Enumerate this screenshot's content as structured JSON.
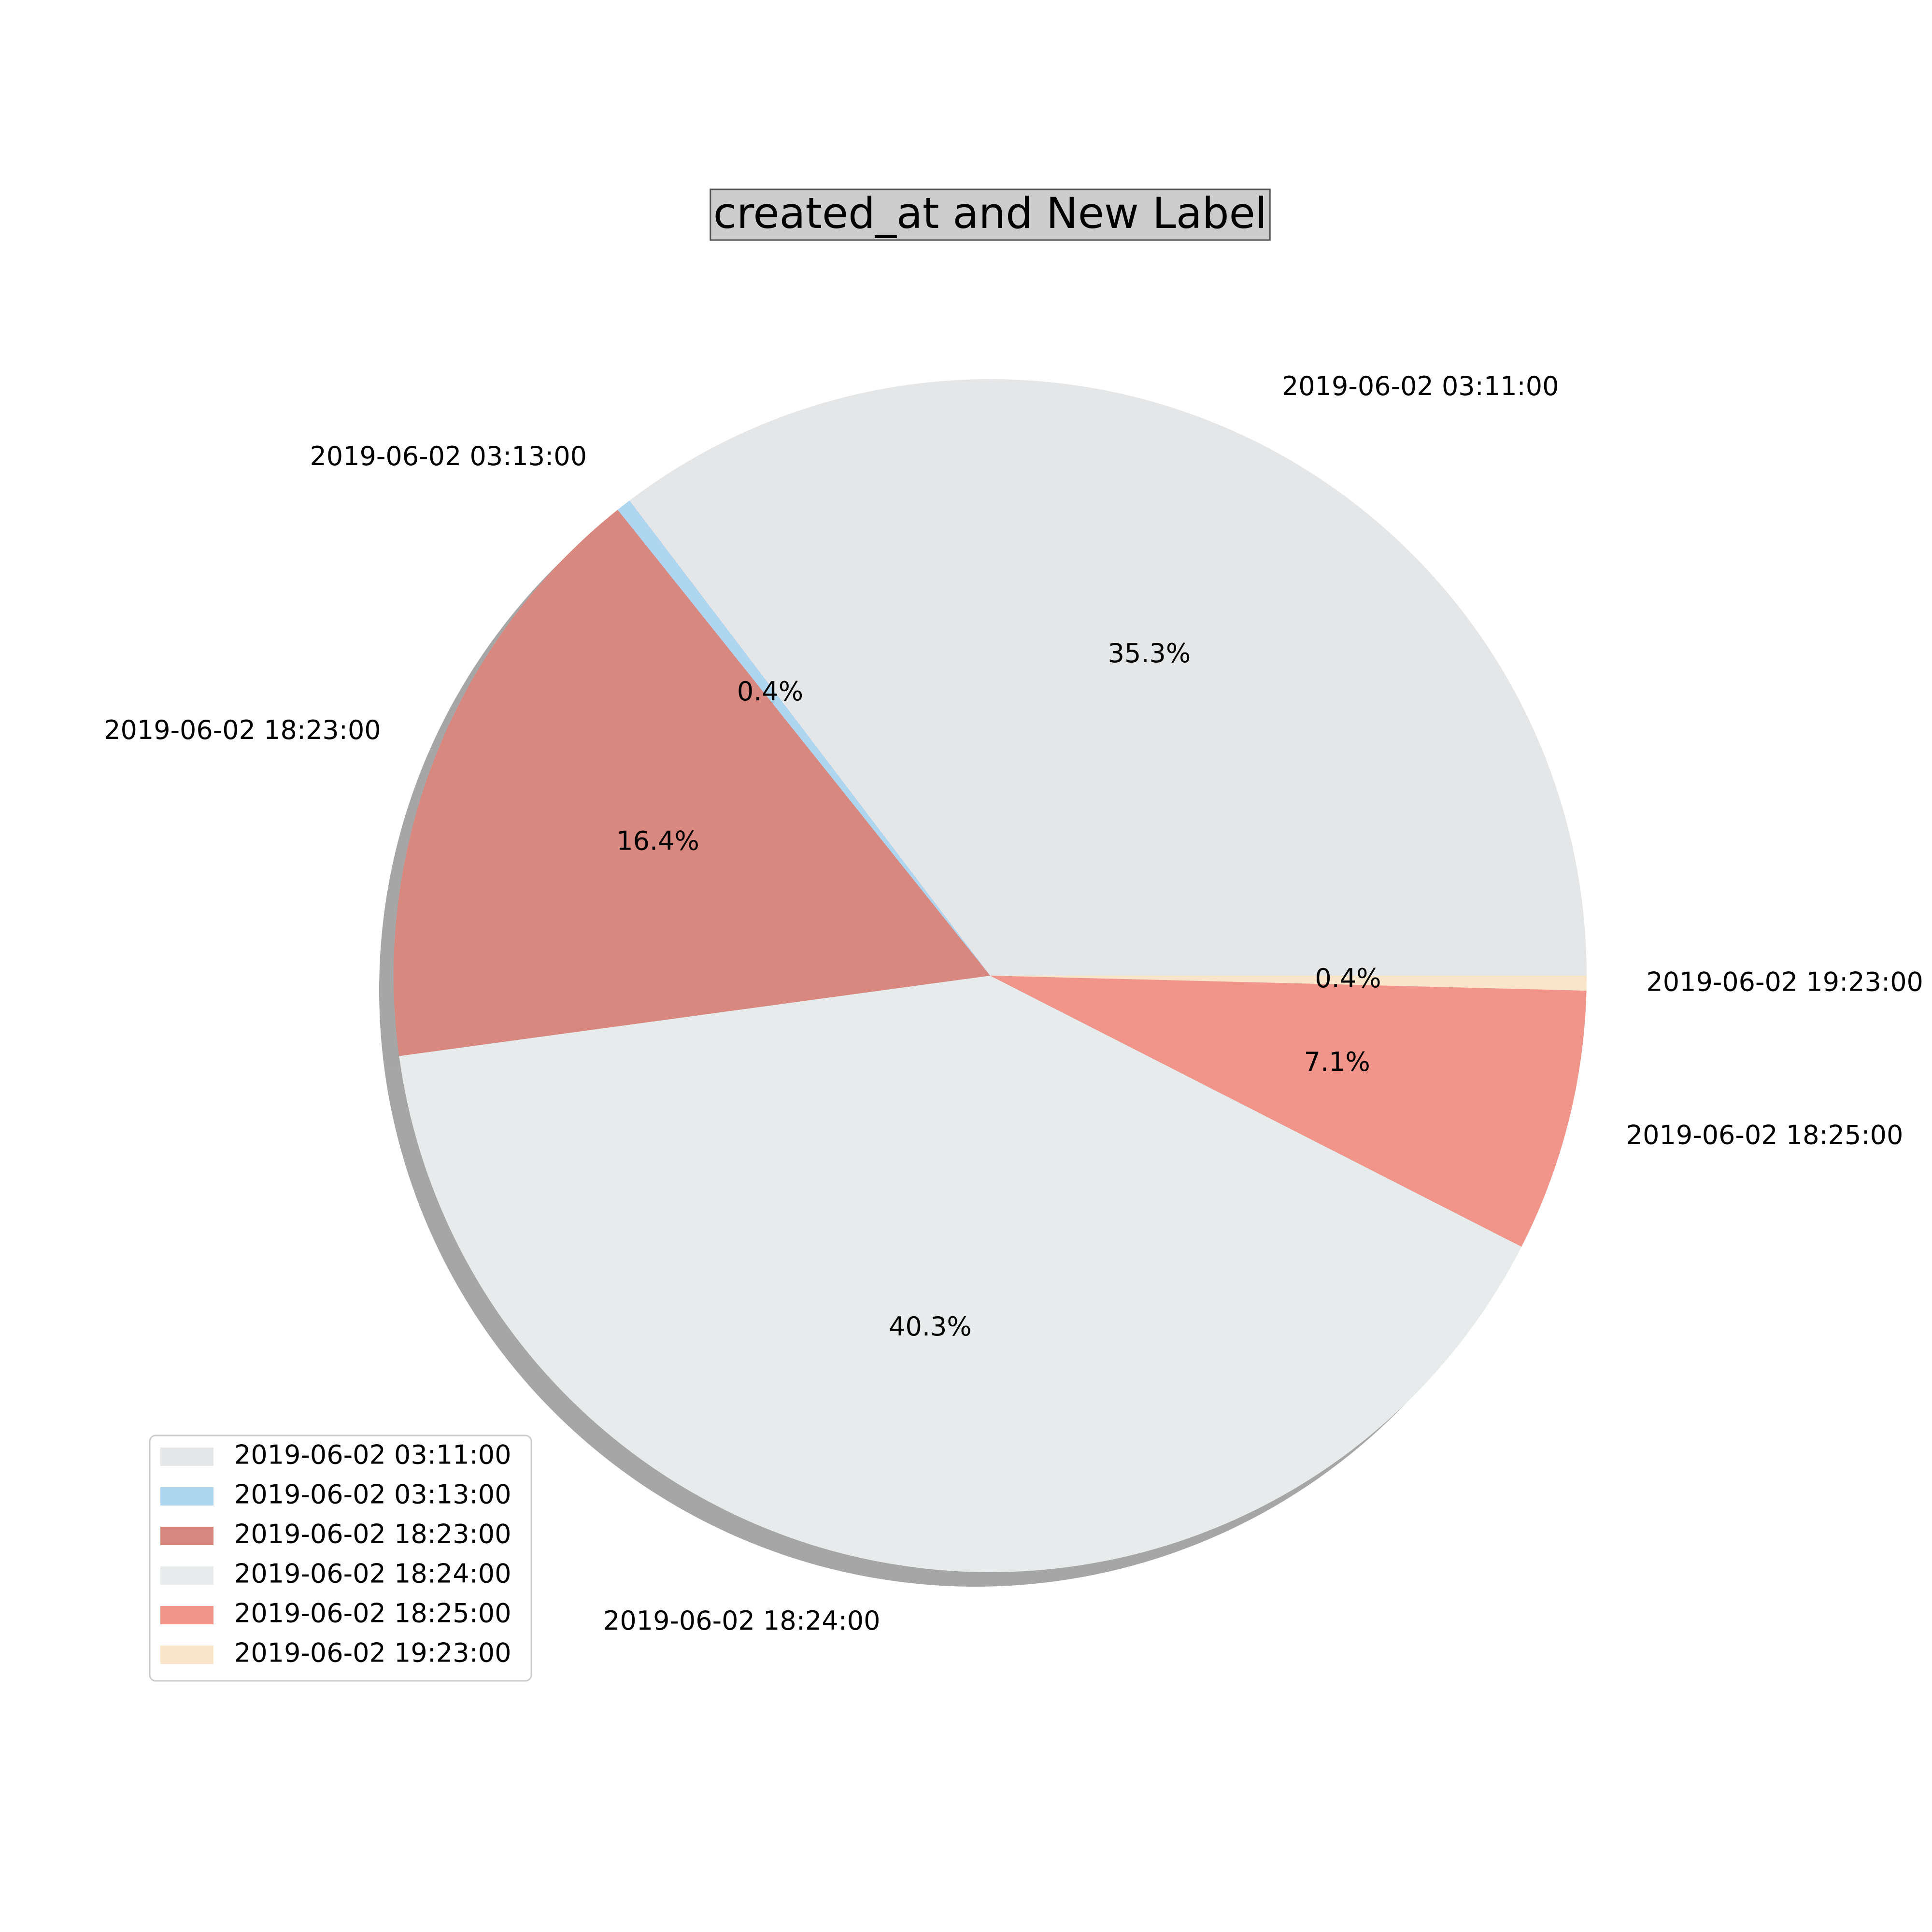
{
  "chart_data": {
    "type": "pie",
    "title": "created_at and New Label",
    "categories": [
      "2019-06-02 03:11:00",
      "2019-06-02 03:13:00",
      "2019-06-02 18:23:00",
      "2019-06-02 18:24:00",
      "2019-06-02 18:25:00",
      "2019-06-02 19:23:00"
    ],
    "values": [
      35.3,
      0.4,
      16.4,
      40.3,
      7.1,
      0.4
    ],
    "percent_labels": [
      "35.3%",
      "0.4%",
      "16.4%",
      "40.3%",
      "7.1%",
      "0.4%"
    ],
    "colors": [
      "#e5e6e7",
      "#aed6f1",
      "#d98880",
      "#e8ebeb",
      "#f1948a",
      "#fae5cb"
    ],
    "start_angle_deg": 0,
    "direction": "counterclockwise",
    "shadow": true,
    "legend_position": "lower-left"
  }
}
